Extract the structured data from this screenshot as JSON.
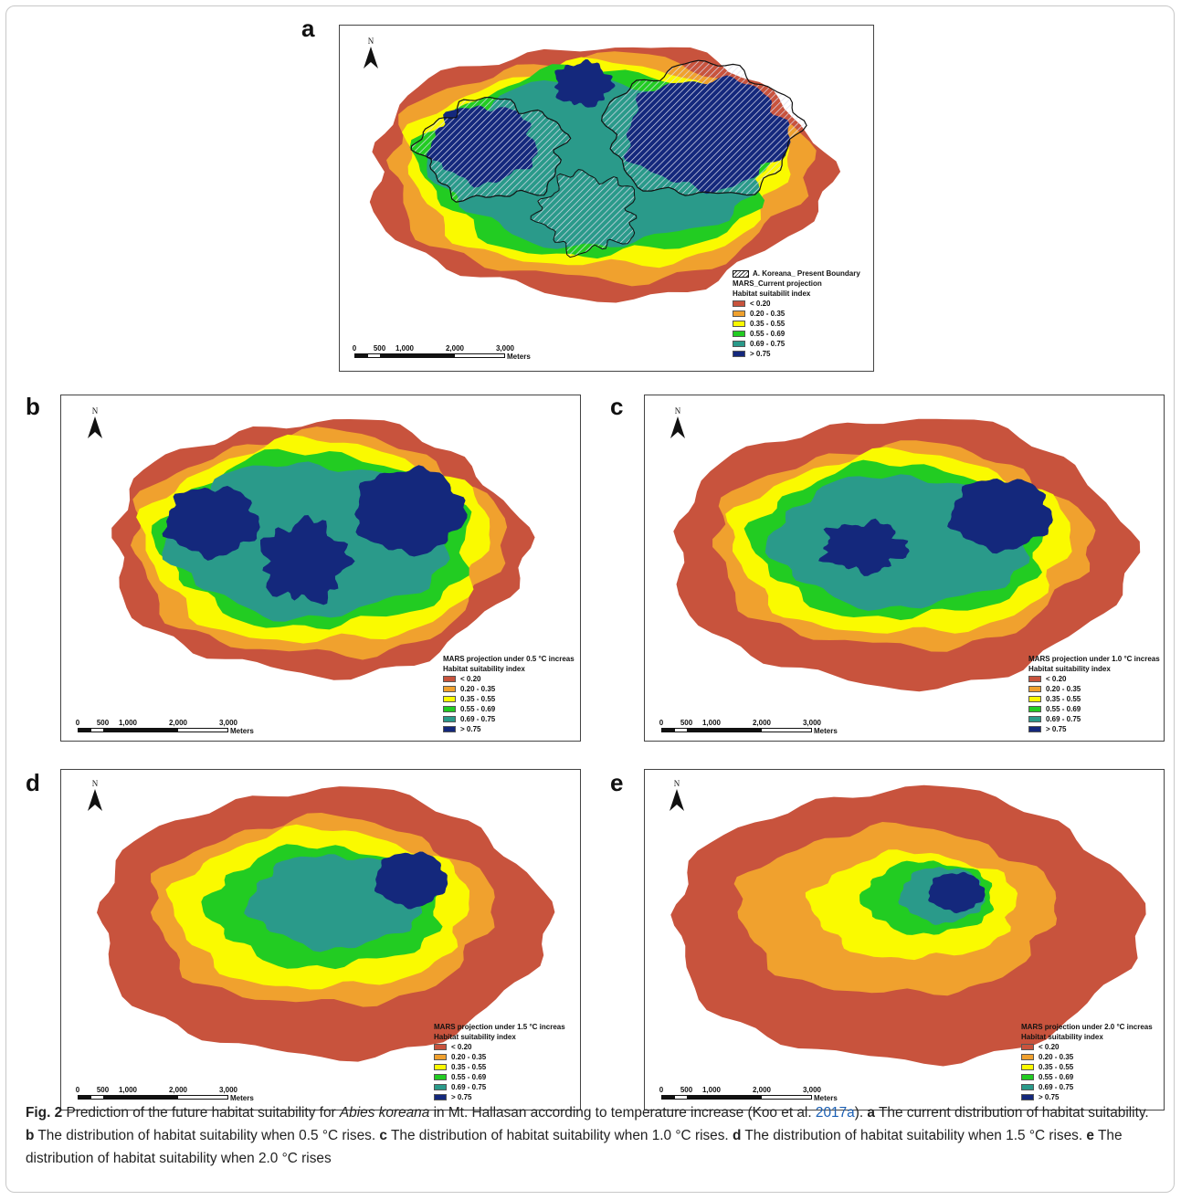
{
  "figure": {
    "colors": {
      "c1": "#c8533d",
      "c2": "#f0a12e",
      "c3": "#fafa00",
      "c4": "#22cc22",
      "c5": "#2a9a8a",
      "c6": "#14287c"
    },
    "north_label": "N",
    "panels": [
      {
        "letter": "a",
        "boundary_label": "A. Koreana_ Present Boundary",
        "title": "MARS_Current projection",
        "subtitle": "Habitat suitabilit index",
        "legend": [
          "< 0.20",
          "0.20 - 0.35",
          "0.35 - 0.55",
          "0.55 - 0.69",
          "0.69 - 0.75",
          "> 0.75"
        ],
        "scale_ticks": [
          "0",
          "500",
          "1,000",
          "2,000",
          "3,000"
        ],
        "scale_unit": "Meters"
      },
      {
        "letter": "b",
        "title": "MARS projection under 0.5 °C increas",
        "subtitle": "Habitat suitability index",
        "legend": [
          "< 0.20",
          "0.20 - 0.35",
          "0.35 - 0.55",
          "0.55 - 0.69",
          "0.69 - 0.75",
          "> 0.75"
        ],
        "scale_ticks": [
          "0",
          "500",
          "1,000",
          "2,000",
          "3,000"
        ],
        "scale_unit": "Meters"
      },
      {
        "letter": "c",
        "title": "MARS projection under 1.0 °C increas",
        "subtitle": "Habitat suitability index",
        "legend": [
          "< 0.20",
          "0.20 - 0.35",
          "0.35 - 0.55",
          "0.55 - 0.69",
          "0.69 - 0.75",
          "> 0.75"
        ],
        "scale_ticks": [
          "0",
          "500",
          "1,000",
          "2,000",
          "3,000"
        ],
        "scale_unit": "Meters"
      },
      {
        "letter": "d",
        "title": "MARS projection under 1.5 °C increas",
        "subtitle": "Habitat suitability index",
        "legend": [
          "< 0.20",
          "0.20 - 0.35",
          "0.35 - 0.55",
          "0.55 - 0.69",
          "0.69 - 0.75",
          "> 0.75"
        ],
        "scale_ticks": [
          "0",
          "500",
          "1,000",
          "2,000",
          "3,000"
        ],
        "scale_unit": "Meters"
      },
      {
        "letter": "e",
        "title": "MARS projection under 2.0 °C increas",
        "subtitle": "Habitat suitability index",
        "legend": [
          "< 0.20",
          "0.20 - 0.35",
          "0.35 - 0.55",
          "0.55 - 0.69",
          "0.69 - 0.75",
          "> 0.75"
        ],
        "scale_ticks": [
          "0",
          "500",
          "1,000",
          "2,000",
          "3,000"
        ],
        "scale_unit": "Meters"
      }
    ],
    "caption": {
      "fig_label": "Fig. 2",
      "lead": " Prediction of the future habitat suitability for ",
      "species": "Abies koreana",
      "mid": " in Mt. Hallasan according to temperature increase (Koo et al. ",
      "cite": "2017a",
      "after_cite": "). ",
      "a_letter": "a",
      "a_text": " The current distribution of habitat suitability. ",
      "b_letter": "b",
      "b_text": " The distribution of habitat suitability when 0.5 °C rises. ",
      "c_letter": "c",
      "c_text": " The distribution of habitat suitability when 1.0 °C rises. ",
      "d_letter": "d",
      "d_text": " The distribution of habitat suitability when 1.5 °C rises. ",
      "e_letter": "e",
      "e_text": " The distribution of habitat suitability when 2.0 °C rises"
    }
  }
}
